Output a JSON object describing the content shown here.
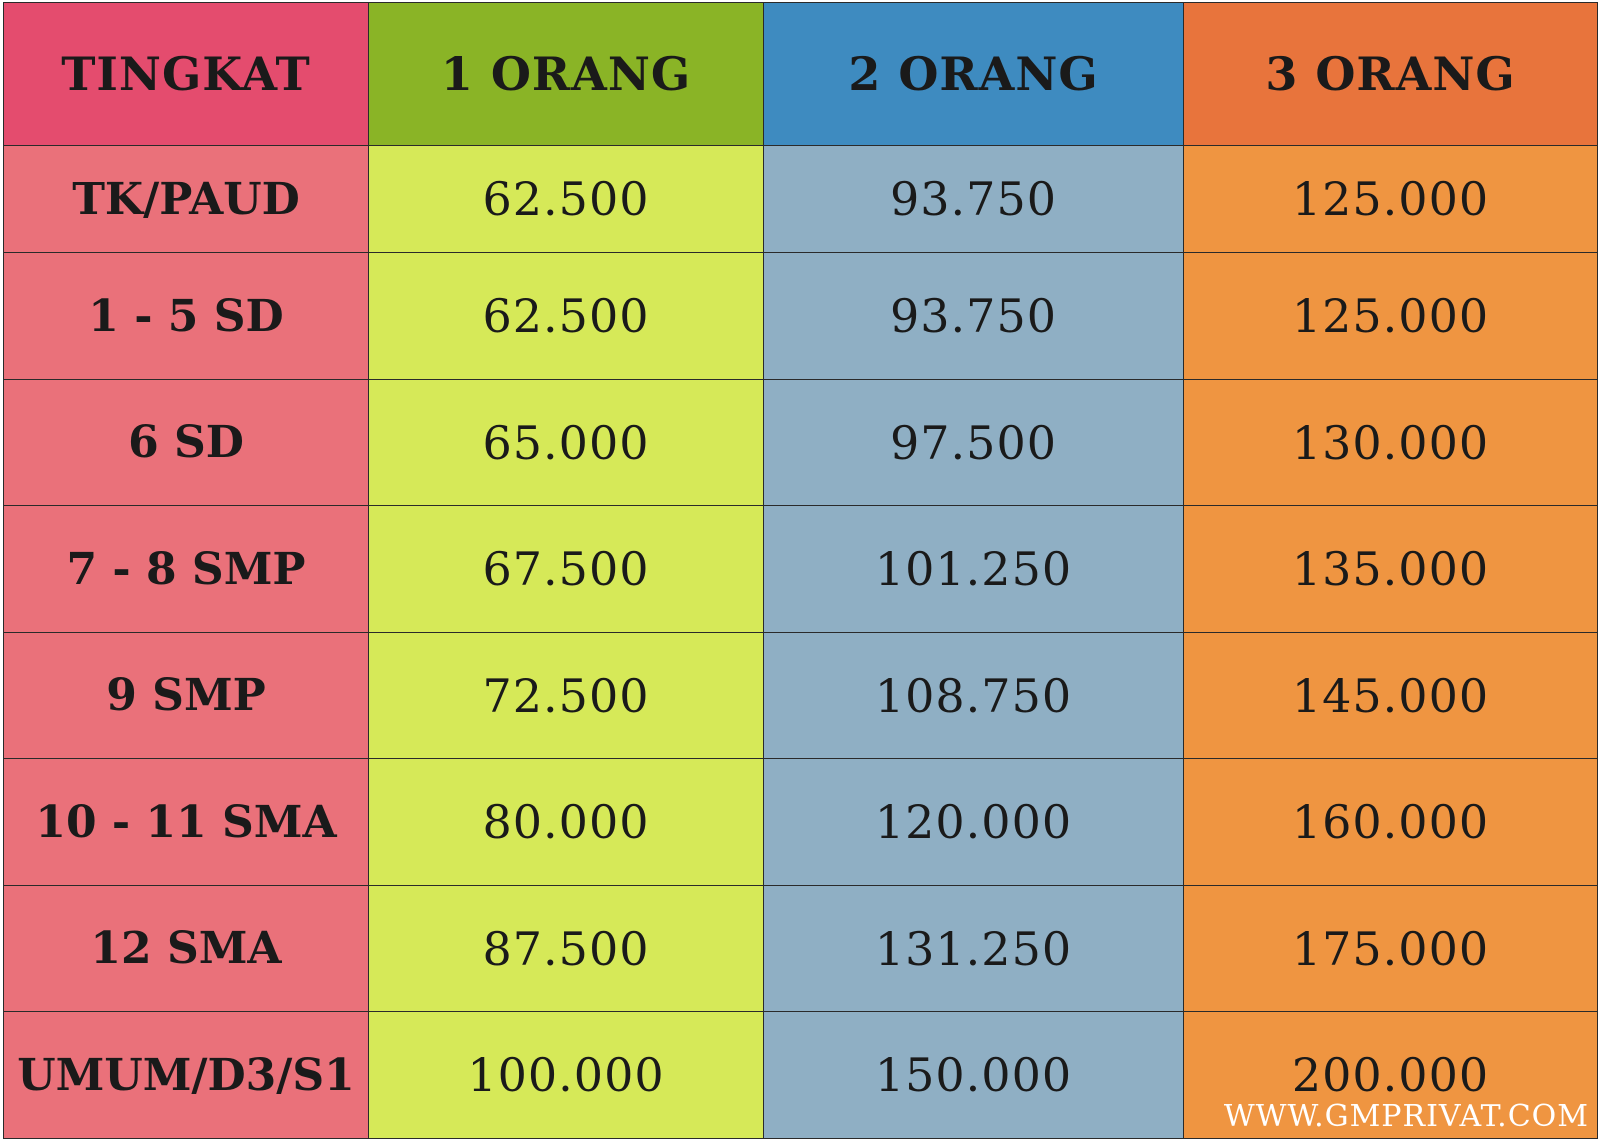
{
  "headers": [
    "TINGKAT",
    "1 ORANG",
    "2 ORANG",
    "3 ORANG"
  ],
  "rows": [
    {
      "level": "TK/PAUD",
      "values": [
        "62.500",
        "93.750",
        "125.000"
      ]
    },
    {
      "level": "1 - 5 SD",
      "values": [
        "62.500",
        "93.750",
        "125.000"
      ]
    },
    {
      "level": "6 SD",
      "values": [
        "65.000",
        "97.500",
        "130.000"
      ]
    },
    {
      "level": "7 - 8 SMP",
      "values": [
        "67.500",
        "101.250",
        "135.000"
      ]
    },
    {
      "level": "9 SMP",
      "values": [
        "72.500",
        "108.750",
        "145.000"
      ]
    },
    {
      "level": "10 - 11 SMA",
      "values": [
        "80.000",
        "120.000",
        "160.000"
      ]
    },
    {
      "level": "12 SMA",
      "values": [
        "87.500",
        "131.250",
        "175.000"
      ]
    },
    {
      "level": "UMUM/D3/S1",
      "values": [
        "100.000",
        "150.000",
        "200.000"
      ]
    }
  ],
  "watermark": "WWW.GMPRIVAT.COM",
  "colors": {
    "header": [
      "#e44c6e",
      "#8ab426",
      "#3e8bc0",
      "#e8743c"
    ],
    "body": [
      "#ea717a",
      "#d6e958",
      "#8fafc4",
      "#ef9541"
    ]
  }
}
